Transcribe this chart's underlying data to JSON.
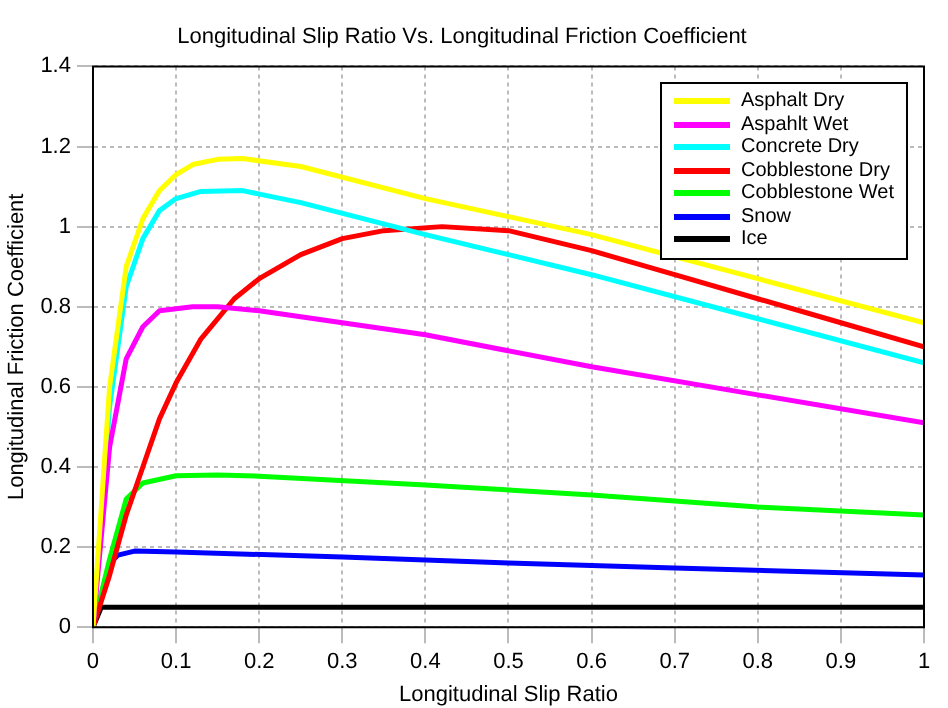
{
  "chart_data": {
    "type": "line",
    "title": "Longitudinal Slip Ratio Vs. Longitudinal Friction Coefficient",
    "xlabel": "Longitudinal Slip Ratio",
    "ylabel": "Longitudinal Friction Coefficient",
    "xlim": [
      0,
      1
    ],
    "ylim": [
      0,
      1.4
    ],
    "xticks": [
      0,
      0.1,
      0.2,
      0.3,
      0.4,
      0.5,
      0.6,
      0.7,
      0.8,
      0.9,
      1
    ],
    "yticks": [
      0,
      0.2,
      0.4,
      0.6,
      0.8,
      1,
      1.2,
      1.4
    ],
    "grid": true,
    "legend": "top right",
    "line_style": "solid",
    "marker": "none",
    "series": [
      {
        "name": "Asphalt Dry",
        "color": "#ffff00",
        "x": [
          0,
          0.02,
          0.04,
          0.06,
          0.08,
          0.1,
          0.12,
          0.15,
          0.18,
          0.25,
          0.4,
          0.6,
          0.8,
          1
        ],
        "values": [
          0,
          0.6,
          0.9,
          1.02,
          1.09,
          1.13,
          1.155,
          1.168,
          1.17,
          1.15,
          1.07,
          0.98,
          0.87,
          0.76
        ]
      },
      {
        "name": "Aspahlt Wet",
        "color": "#ff00ff",
        "x": [
          0,
          0.02,
          0.04,
          0.06,
          0.08,
          0.12,
          0.15,
          0.2,
          0.4,
          0.6,
          0.8,
          1
        ],
        "values": [
          0,
          0.45,
          0.67,
          0.75,
          0.79,
          0.8,
          0.8,
          0.79,
          0.73,
          0.65,
          0.58,
          0.51
        ]
      },
      {
        "name": "Concrete Dry",
        "color": "#00ffff",
        "x": [
          0,
          0.02,
          0.04,
          0.06,
          0.08,
          0.1,
          0.13,
          0.18,
          0.25,
          0.4,
          0.6,
          0.8,
          1
        ],
        "values": [
          0,
          0.55,
          0.85,
          0.97,
          1.04,
          1.07,
          1.088,
          1.09,
          1.06,
          0.98,
          0.88,
          0.77,
          0.66
        ]
      },
      {
        "name": "Cobblestone Dry",
        "color": "#ff0000",
        "x": [
          0,
          0.02,
          0.04,
          0.06,
          0.08,
          0.1,
          0.13,
          0.17,
          0.2,
          0.25,
          0.3,
          0.35,
          0.42,
          0.5,
          0.6,
          0.7,
          0.8,
          0.9,
          1
        ],
        "values": [
          0,
          0.13,
          0.28,
          0.4,
          0.52,
          0.61,
          0.72,
          0.82,
          0.87,
          0.93,
          0.97,
          0.99,
          1,
          0.99,
          0.94,
          0.88,
          0.82,
          0.76,
          0.7
        ]
      },
      {
        "name": "Cobblestone Wet",
        "color": "#00ff00",
        "x": [
          0,
          0.02,
          0.04,
          0.06,
          0.1,
          0.15,
          0.2,
          0.4,
          0.6,
          0.8,
          1
        ],
        "values": [
          0,
          0.17,
          0.32,
          0.36,
          0.378,
          0.38,
          0.377,
          0.355,
          0.33,
          0.3,
          0.28
        ]
      },
      {
        "name": "Snow",
        "color": "#0000ff",
        "x": [
          0,
          0.02,
          0.03,
          0.05,
          0.1,
          0.3,
          0.5,
          0.7,
          1
        ],
        "values": [
          0,
          0.16,
          0.18,
          0.19,
          0.188,
          0.175,
          0.16,
          0.148,
          0.13
        ]
      },
      {
        "name": "Ice",
        "color": "#000000",
        "x": [
          0,
          0.01,
          1
        ],
        "values": [
          0,
          0.05,
          0.05
        ]
      }
    ]
  }
}
